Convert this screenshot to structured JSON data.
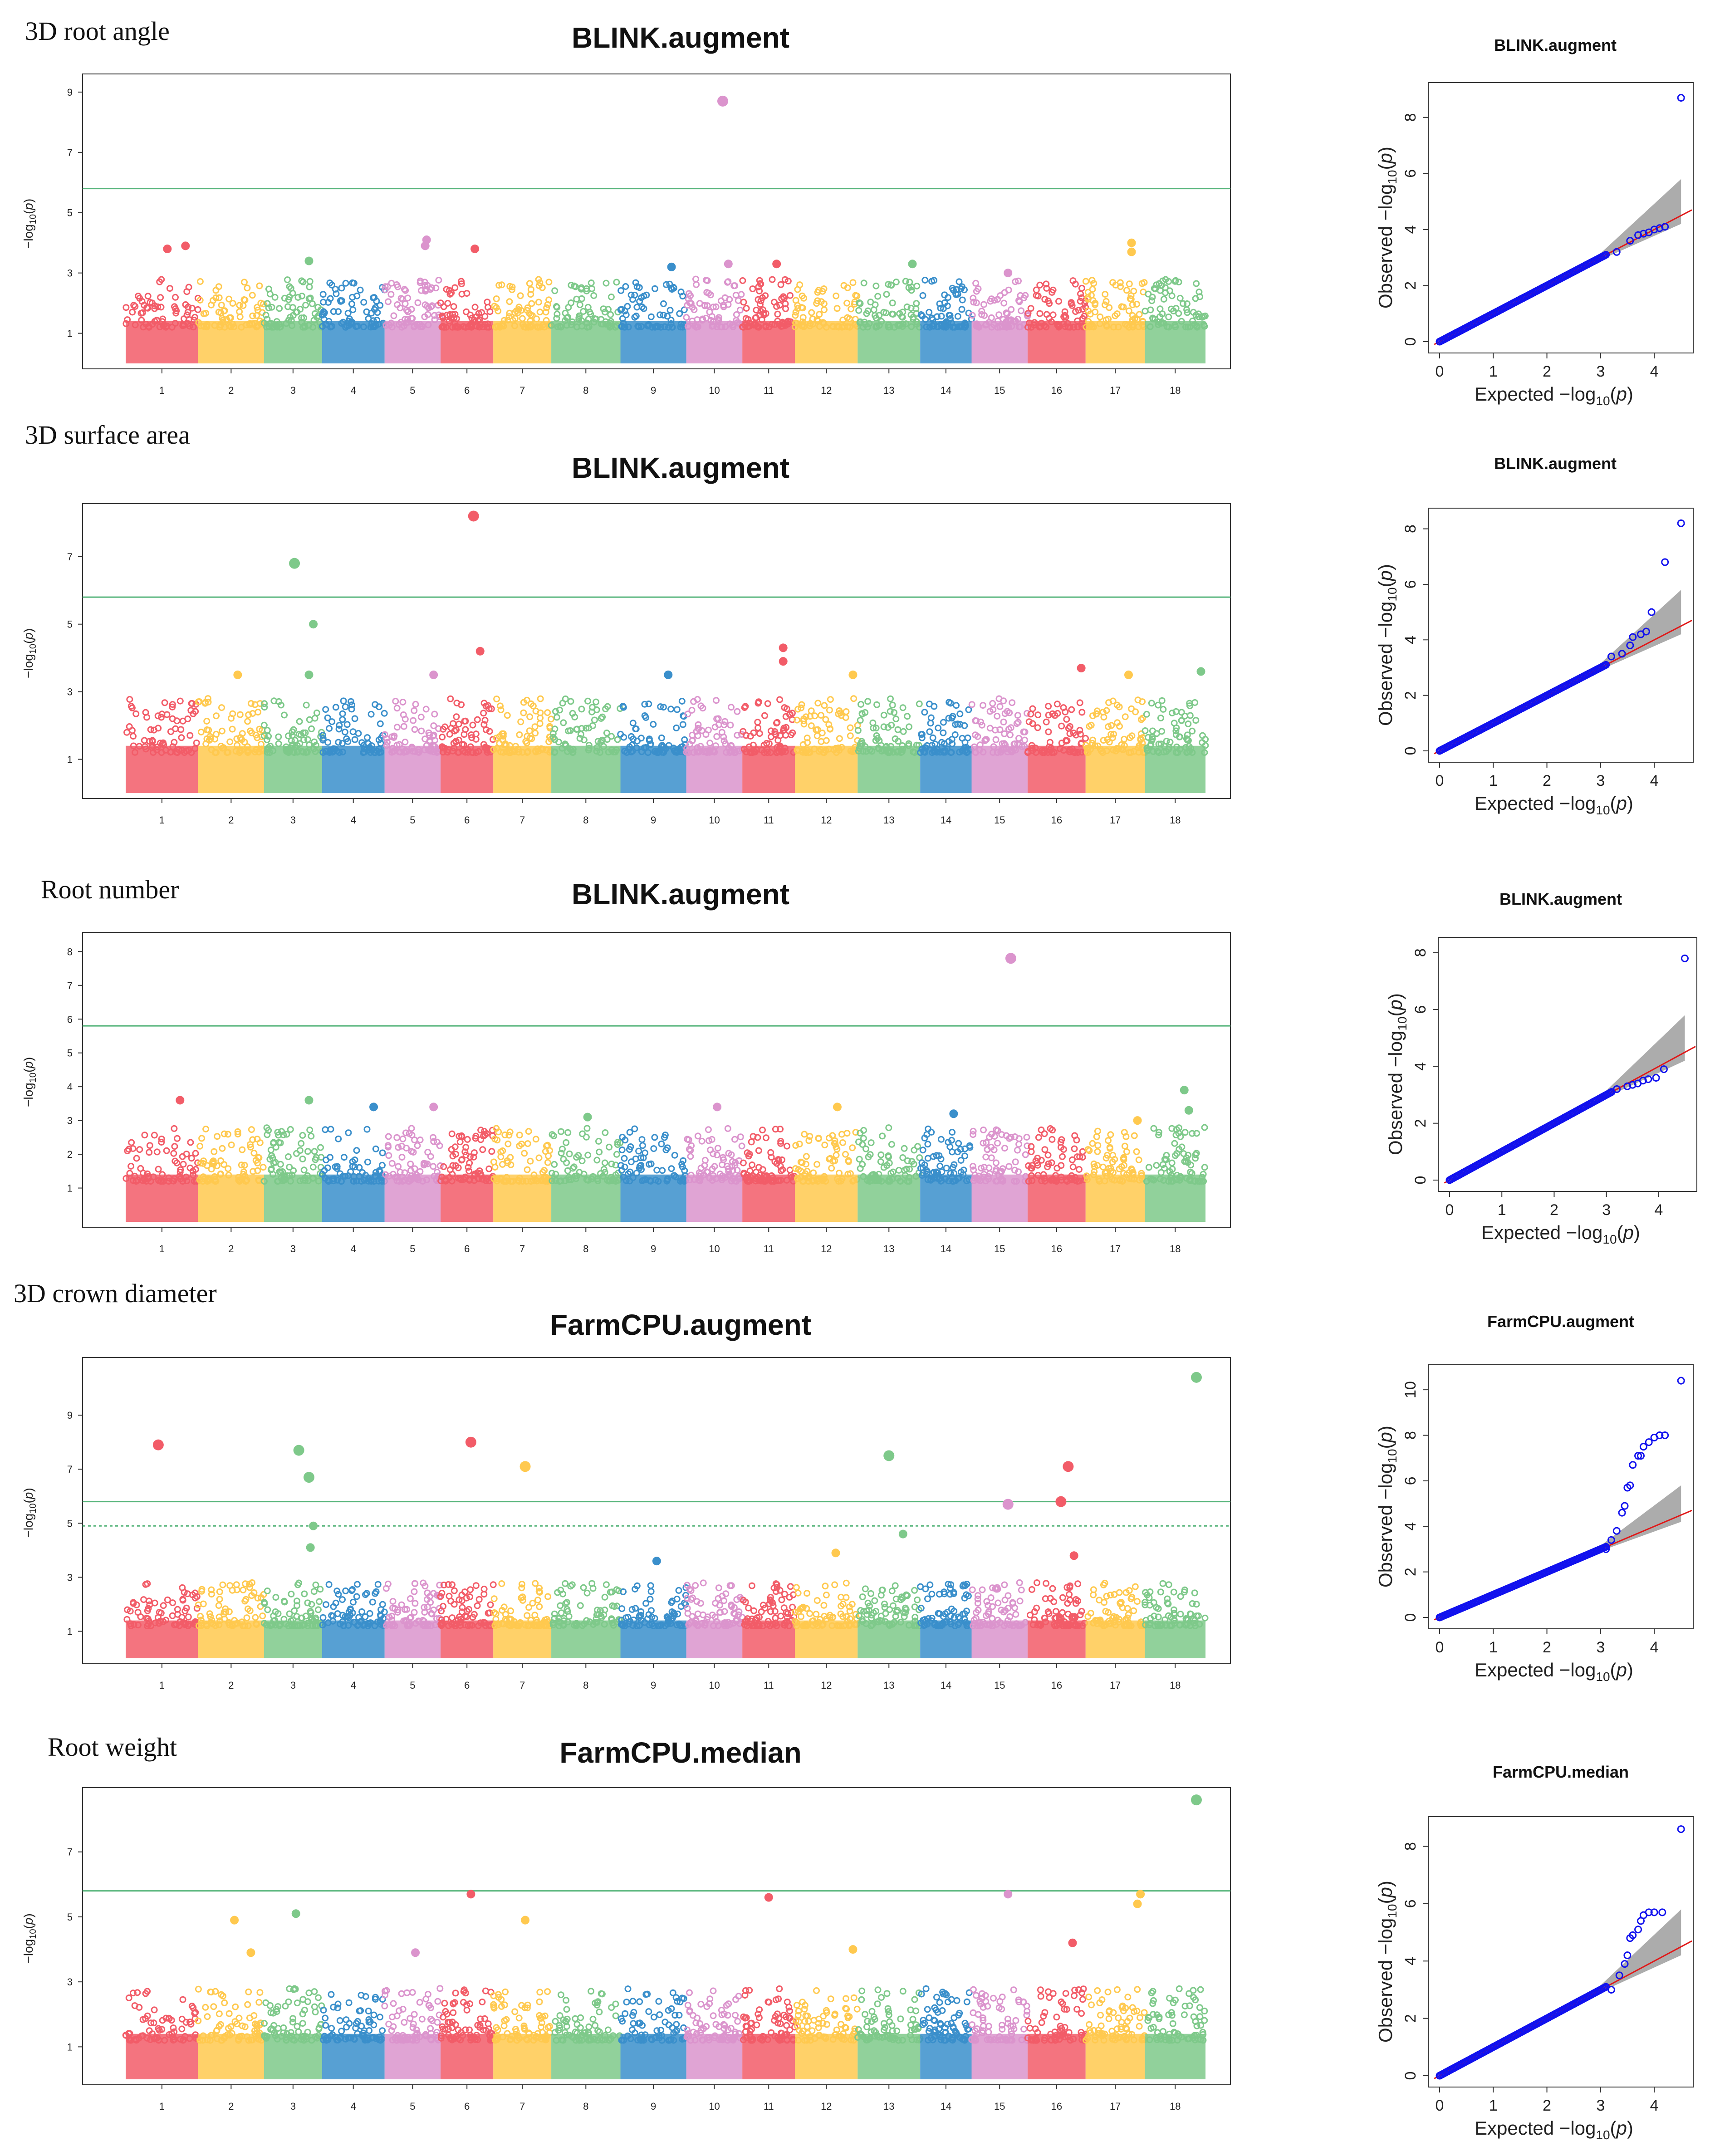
{
  "colors": {
    "chromosomes": [
      "#F25C68",
      "#FFC94F",
      "#7EC98A",
      "#3A8FCB",
      "#DB94CD"
    ],
    "threshold": "#55B47A",
    "qq_points": "#1111EE",
    "qq_line": "#E01818",
    "qq_band": "#9E9E9E"
  },
  "chart_data": [
    {
      "type": "scatter",
      "id": "root-angle",
      "trait": "3D root angle",
      "title": "BLINK.augment",
      "ylabel": "−log10(p)",
      "ylim": [
        0,
        9.3
      ],
      "yticks": [
        1,
        3,
        5,
        7,
        9
      ],
      "chromosomes": [
        "1",
        "2",
        "3",
        "4",
        "5",
        "6",
        "7",
        "8",
        "9",
        "10",
        "11",
        "12",
        "13",
        "14",
        "15",
        "16",
        "17",
        "18"
      ],
      "threshold": 5.8,
      "significant": [
        {
          "chr": 10,
          "pos": 0.3,
          "value": 8.7
        }
      ],
      "peaks": [
        {
          "chr": 1,
          "pos": 0.15,
          "value": 3.8
        },
        {
          "chr": 1,
          "pos": 0.65,
          "value": 3.9
        },
        {
          "chr": 3,
          "pos": 0.55,
          "value": 3.4
        },
        {
          "chr": 5,
          "pos": 0.5,
          "value": 4.1
        },
        {
          "chr": 5,
          "pos": 0.45,
          "value": 3.9
        },
        {
          "chr": 6,
          "pos": 0.3,
          "value": 3.8
        },
        {
          "chr": 9,
          "pos": 0.55,
          "value": 3.2
        },
        {
          "chr": 10,
          "pos": 0.5,
          "value": 3.3
        },
        {
          "chr": 11,
          "pos": 0.3,
          "value": 3.3
        },
        {
          "chr": 13,
          "pos": 0.75,
          "value": 3.3
        },
        {
          "chr": 15,
          "pos": 0.3,
          "value": 3.0
        },
        {
          "chr": 17,
          "pos": 0.55,
          "value": 4.0
        },
        {
          "chr": 17,
          "pos": 0.55,
          "value": 3.7
        }
      ],
      "qq": {
        "title": "BLINK.augment",
        "xlabel": "Expected −log10(p)",
        "ylabel": "Observed −log10(p)",
        "xlim": [
          0,
          4.6
        ],
        "ylim": [
          0,
          9
        ],
        "xticks": [
          0,
          1,
          2,
          3,
          4
        ],
        "yticks": [
          0,
          2,
          4,
          6,
          8
        ],
        "line_end": 4.5,
        "points": [
          [
            3.3,
            3.2
          ],
          [
            3.55,
            3.6
          ],
          [
            3.7,
            3.8
          ],
          [
            3.8,
            3.85
          ],
          [
            3.9,
            3.9
          ],
          [
            4.0,
            4.0
          ],
          [
            4.1,
            4.05
          ],
          [
            4.2,
            4.1
          ],
          [
            4.5,
            8.7
          ]
        ]
      }
    },
    {
      "type": "scatter",
      "id": "surface-area",
      "trait": "3D surface area",
      "title": "BLINK.augment",
      "ylabel": "−log10(p)",
      "ylim": [
        0,
        8.3
      ],
      "yticks": [
        1,
        3,
        5,
        7
      ],
      "chromosomes": [
        "1",
        "2",
        "3",
        "4",
        "5",
        "6",
        "7",
        "8",
        "9",
        "10",
        "11",
        "12",
        "13",
        "14",
        "15",
        "16",
        "17",
        "18"
      ],
      "threshold": 5.8,
      "significant": [
        {
          "chr": 3,
          "pos": 0.05,
          "value": 6.8
        },
        {
          "chr": 6,
          "pos": 0.25,
          "value": 8.2
        }
      ],
      "peaks": [
        {
          "chr": 3,
          "pos": 0.7,
          "value": 5.0
        },
        {
          "chr": 3,
          "pos": 0.55,
          "value": 3.5
        },
        {
          "chr": 6,
          "pos": 0.5,
          "value": 4.2
        },
        {
          "chr": 5,
          "pos": 0.75,
          "value": 3.5
        },
        {
          "chr": 9,
          "pos": 0.45,
          "value": 3.5
        },
        {
          "chr": 11,
          "pos": 0.55,
          "value": 4.3
        },
        {
          "chr": 11,
          "pos": 0.55,
          "value": 3.9
        },
        {
          "chr": 12,
          "pos": 0.85,
          "value": 3.5
        },
        {
          "chr": 16,
          "pos": 0.85,
          "value": 3.7
        },
        {
          "chr": 18,
          "pos": 0.85,
          "value": 3.6
        },
        {
          "chr": 2,
          "pos": 0.2,
          "value": 3.5
        },
        {
          "chr": 17,
          "pos": 0.45,
          "value": 3.5
        }
      ],
      "qq": {
        "title": "BLINK.augment",
        "xlabel": "Expected −log10(p)",
        "ylabel": "Observed −log10(p)",
        "xlim": [
          0,
          4.6
        ],
        "ylim": [
          0,
          8.5
        ],
        "xticks": [
          0,
          1,
          2,
          3,
          4
        ],
        "yticks": [
          0,
          2,
          4,
          6,
          8
        ],
        "line_end": 4.5,
        "points": [
          [
            3.2,
            3.4
          ],
          [
            3.4,
            3.5
          ],
          [
            3.55,
            3.8
          ],
          [
            3.6,
            4.1
          ],
          [
            3.75,
            4.2
          ],
          [
            3.85,
            4.3
          ],
          [
            3.95,
            5.0
          ],
          [
            4.2,
            6.8
          ],
          [
            4.5,
            8.2
          ]
        ]
      }
    },
    {
      "type": "scatter",
      "id": "root-number",
      "trait": "Root number",
      "title": "BLINK.augment",
      "ylabel": "−log10(p)",
      "ylim": [
        0,
        8.3
      ],
      "yticks": [
        1,
        2,
        3,
        4,
        5,
        6,
        7,
        8
      ],
      "chromosomes": [
        "1",
        "2",
        "3",
        "4",
        "5",
        "6",
        "7",
        "8",
        "9",
        "10",
        "11",
        "12",
        "13",
        "14",
        "15",
        "16",
        "17",
        "18"
      ],
      "threshold": 5.8,
      "significant": [
        {
          "chr": 15,
          "pos": 0.4,
          "value": 7.8
        }
      ],
      "peaks": [
        {
          "chr": 1,
          "pos": 0.5,
          "value": 3.6
        },
        {
          "chr": 3,
          "pos": 0.55,
          "value": 3.6
        },
        {
          "chr": 4,
          "pos": 0.65,
          "value": 3.4
        },
        {
          "chr": 5,
          "pos": 0.75,
          "value": 3.4
        },
        {
          "chr": 8,
          "pos": 0.05,
          "value": 3.1
        },
        {
          "chr": 10,
          "pos": 0.1,
          "value": 3.4
        },
        {
          "chr": 12,
          "pos": 0.35,
          "value": 3.4
        },
        {
          "chr": 14,
          "pos": 0.3,
          "value": 3.2
        },
        {
          "chr": 18,
          "pos": 0.3,
          "value": 3.9
        },
        {
          "chr": 18,
          "pos": 0.45,
          "value": 3.3
        },
        {
          "chr": 17,
          "pos": 0.75,
          "value": 3.0
        }
      ],
      "qq": {
        "title": "BLINK.augment",
        "xlabel": "Expected −log10(p)",
        "ylabel": "Observed −log10(p)",
        "xlim": [
          0,
          4.6
        ],
        "ylim": [
          0,
          8.3
        ],
        "xticks": [
          0,
          1,
          2,
          3,
          4
        ],
        "yticks": [
          0,
          2,
          4,
          6,
          8
        ],
        "line_end": 4.5,
        "points": [
          [
            3.2,
            3.2
          ],
          [
            3.4,
            3.3
          ],
          [
            3.5,
            3.35
          ],
          [
            3.6,
            3.4
          ],
          [
            3.7,
            3.5
          ],
          [
            3.8,
            3.55
          ],
          [
            3.95,
            3.6
          ],
          [
            4.1,
            3.9
          ],
          [
            4.5,
            7.8
          ]
        ]
      }
    },
    {
      "type": "scatter",
      "id": "crown-diameter",
      "trait": "3D crown diameter",
      "title": "FarmCPU.augment",
      "ylabel": "−log10(p)",
      "ylim": [
        0,
        10.8
      ],
      "yticks": [
        1,
        3,
        5,
        7,
        9
      ],
      "chromosomes": [
        "1",
        "2",
        "3",
        "4",
        "5",
        "6",
        "7",
        "8",
        "9",
        "10",
        "11",
        "12",
        "13",
        "14",
        "15",
        "16",
        "17",
        "18"
      ],
      "threshold": 5.8,
      "threshold2": 4.9,
      "significant": [
        {
          "chr": 1,
          "pos": -0.1,
          "value": 7.9
        },
        {
          "chr": 3,
          "pos": 0.2,
          "value": 7.7
        },
        {
          "chr": 3,
          "pos": 0.55,
          "value": 6.7
        },
        {
          "chr": 6,
          "pos": 0.15,
          "value": 8.0
        },
        {
          "chr": 7,
          "pos": 0.1,
          "value": 7.1
        },
        {
          "chr": 13,
          "pos": 0.0,
          "value": 7.5
        },
        {
          "chr": 16,
          "pos": 0.4,
          "value": 7.1
        },
        {
          "chr": 18,
          "pos": 0.7,
          "value": 10.4
        },
        {
          "chr": 15,
          "pos": 0.3,
          "value": 5.7
        },
        {
          "chr": 16,
          "pos": 0.15,
          "value": 5.8
        }
      ],
      "peaks": [
        {
          "chr": 3,
          "pos": 0.7,
          "value": 4.9
        },
        {
          "chr": 3,
          "pos": 0.6,
          "value": 4.1
        },
        {
          "chr": 12,
          "pos": 0.3,
          "value": 3.9
        },
        {
          "chr": 13,
          "pos": 0.45,
          "value": 4.6
        },
        {
          "chr": 9,
          "pos": 0.1,
          "value": 3.6
        },
        {
          "chr": 16,
          "pos": 0.6,
          "value": 3.8
        }
      ],
      "qq": {
        "title": "FarmCPU.augment",
        "xlabel": "Expected −log10(p)",
        "ylabel": "Observed −log10(p)",
        "xlim": [
          0,
          4.6
        ],
        "ylim": [
          0,
          10.8
        ],
        "xticks": [
          0,
          1,
          2,
          3,
          4
        ],
        "yticks": [
          0,
          2,
          4,
          6,
          8,
          10
        ],
        "line_end": 4.5,
        "points": [
          [
            3.1,
            3.0
          ],
          [
            3.2,
            3.4
          ],
          [
            3.3,
            3.8
          ],
          [
            3.4,
            4.6
          ],
          [
            3.45,
            4.9
          ],
          [
            3.5,
            5.7
          ],
          [
            3.55,
            5.8
          ],
          [
            3.6,
            6.7
          ],
          [
            3.7,
            7.1
          ],
          [
            3.75,
            7.1
          ],
          [
            3.8,
            7.5
          ],
          [
            3.9,
            7.7
          ],
          [
            4.0,
            7.9
          ],
          [
            4.1,
            8.0
          ],
          [
            4.2,
            8.0
          ],
          [
            4.5,
            10.4
          ]
        ]
      }
    },
    {
      "type": "scatter",
      "id": "root-weight",
      "trait": "Root weight",
      "title": "FarmCPU.median",
      "ylabel": "−log10(p)",
      "ylim": [
        0,
        8.7
      ],
      "yticks": [
        1,
        3,
        5,
        7
      ],
      "chromosomes": [
        "1",
        "2",
        "3",
        "4",
        "5",
        "6",
        "7",
        "8",
        "9",
        "10",
        "11",
        "12",
        "13",
        "14",
        "15",
        "16",
        "17",
        "18"
      ],
      "threshold": 5.8,
      "significant": [
        {
          "chr": 18,
          "pos": 0.7,
          "value": 8.6
        }
      ],
      "peaks": [
        {
          "chr": 6,
          "pos": 0.15,
          "value": 5.7
        },
        {
          "chr": 11,
          "pos": 0.0,
          "value": 5.6
        },
        {
          "chr": 15,
          "pos": 0.3,
          "value": 5.7
        },
        {
          "chr": 17,
          "pos": 0.85,
          "value": 5.7
        },
        {
          "chr": 17,
          "pos": 0.75,
          "value": 5.4
        },
        {
          "chr": 3,
          "pos": 0.1,
          "value": 5.1
        },
        {
          "chr": 2,
          "pos": 0.1,
          "value": 4.9
        },
        {
          "chr": 7,
          "pos": 0.1,
          "value": 4.9
        },
        {
          "chr": 16,
          "pos": 0.55,
          "value": 4.2
        },
        {
          "chr": 12,
          "pos": 0.85,
          "value": 4.0
        },
        {
          "chr": 2,
          "pos": 0.6,
          "value": 3.9
        },
        {
          "chr": 5,
          "pos": 0.1,
          "value": 3.9
        }
      ],
      "qq": {
        "title": "FarmCPU.median",
        "xlabel": "Expected −log10(p)",
        "ylabel": "Observed −log10(p)",
        "xlim": [
          0,
          4.6
        ],
        "ylim": [
          0,
          8.8
        ],
        "xticks": [
          0,
          1,
          2,
          3,
          4
        ],
        "yticks": [
          0,
          2,
          4,
          6,
          8
        ],
        "line_end": 4.5,
        "points": [
          [
            3.2,
            3.0
          ],
          [
            3.35,
            3.5
          ],
          [
            3.45,
            3.9
          ],
          [
            3.5,
            4.2
          ],
          [
            3.55,
            4.8
          ],
          [
            3.6,
            4.9
          ],
          [
            3.7,
            5.1
          ],
          [
            3.75,
            5.4
          ],
          [
            3.8,
            5.6
          ],
          [
            3.9,
            5.7
          ],
          [
            4.0,
            5.7
          ],
          [
            4.15,
            5.7
          ],
          [
            4.5,
            8.6
          ]
        ]
      }
    }
  ]
}
